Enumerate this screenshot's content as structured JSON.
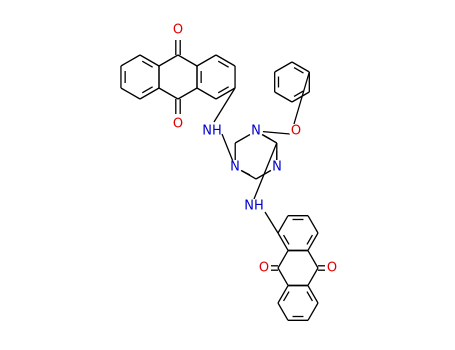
{
  "atoms": {
    "labels": [
      "O",
      "O",
      "NH",
      "N",
      "N",
      "N",
      "O",
      "NH",
      "O",
      "O"
    ]
  }
}
